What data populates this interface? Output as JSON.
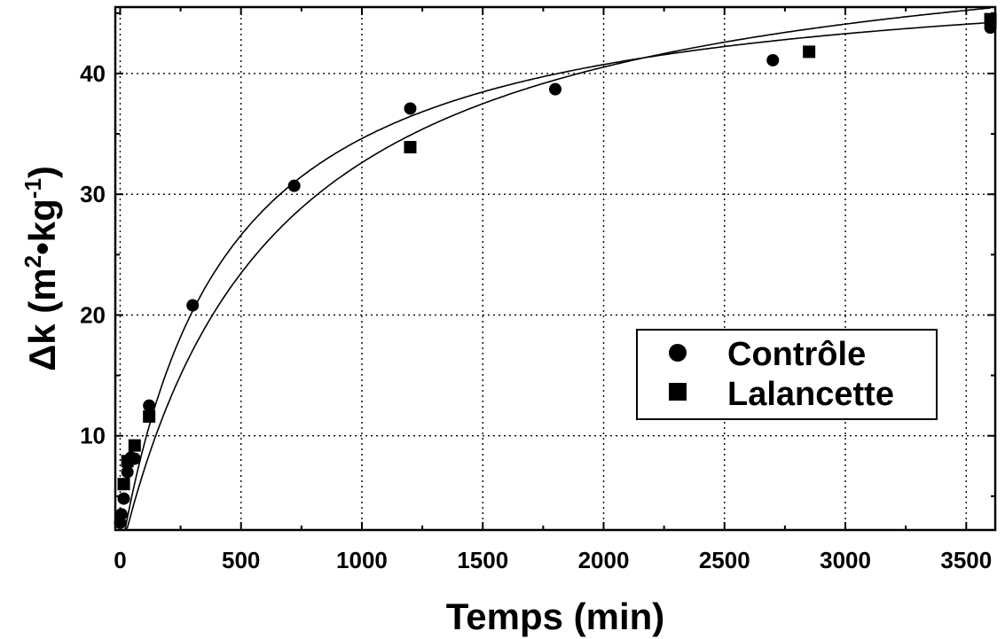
{
  "chart_data": {
    "type": "scatter",
    "xlabel": "Temps (min)",
    "ylabel_main": "Δk (m",
    "ylabel_sup1": "2",
    "ylabel_mid": "•kg",
    "ylabel_sup2": "-1",
    "ylabel_end": ")",
    "xlim": [
      -20,
      3620
    ],
    "ylim": [
      2.2,
      45.5
    ],
    "xticks": [
      0,
      500,
      1000,
      1500,
      2000,
      2500,
      3000,
      3500
    ],
    "yticks": [
      10,
      20,
      30,
      40
    ],
    "grid": true,
    "legend_position": "middle-right",
    "series": [
      {
        "name": "Contrôle",
        "marker": "circle",
        "x": [
          0,
          5,
          15,
          30,
          45,
          60,
          120,
          300,
          720,
          1200,
          1800,
          2700,
          3600
        ],
        "y": [
          2.8,
          3.5,
          4.8,
          7.0,
          8.2,
          8.1,
          12.5,
          20.8,
          30.7,
          37.1,
          38.7,
          41.1,
          43.8
        ],
        "fit_a": 49.5,
        "fit_b": 430
      },
      {
        "name": "Lalancette",
        "marker": "square",
        "x": [
          15,
          30,
          60,
          120,
          1200,
          2850,
          3600
        ],
        "y": [
          6.0,
          7.9,
          9.2,
          11.6,
          33.9,
          41.8,
          44.5
        ],
        "fit_a": 53.5,
        "fit_b": 640
      }
    ]
  }
}
